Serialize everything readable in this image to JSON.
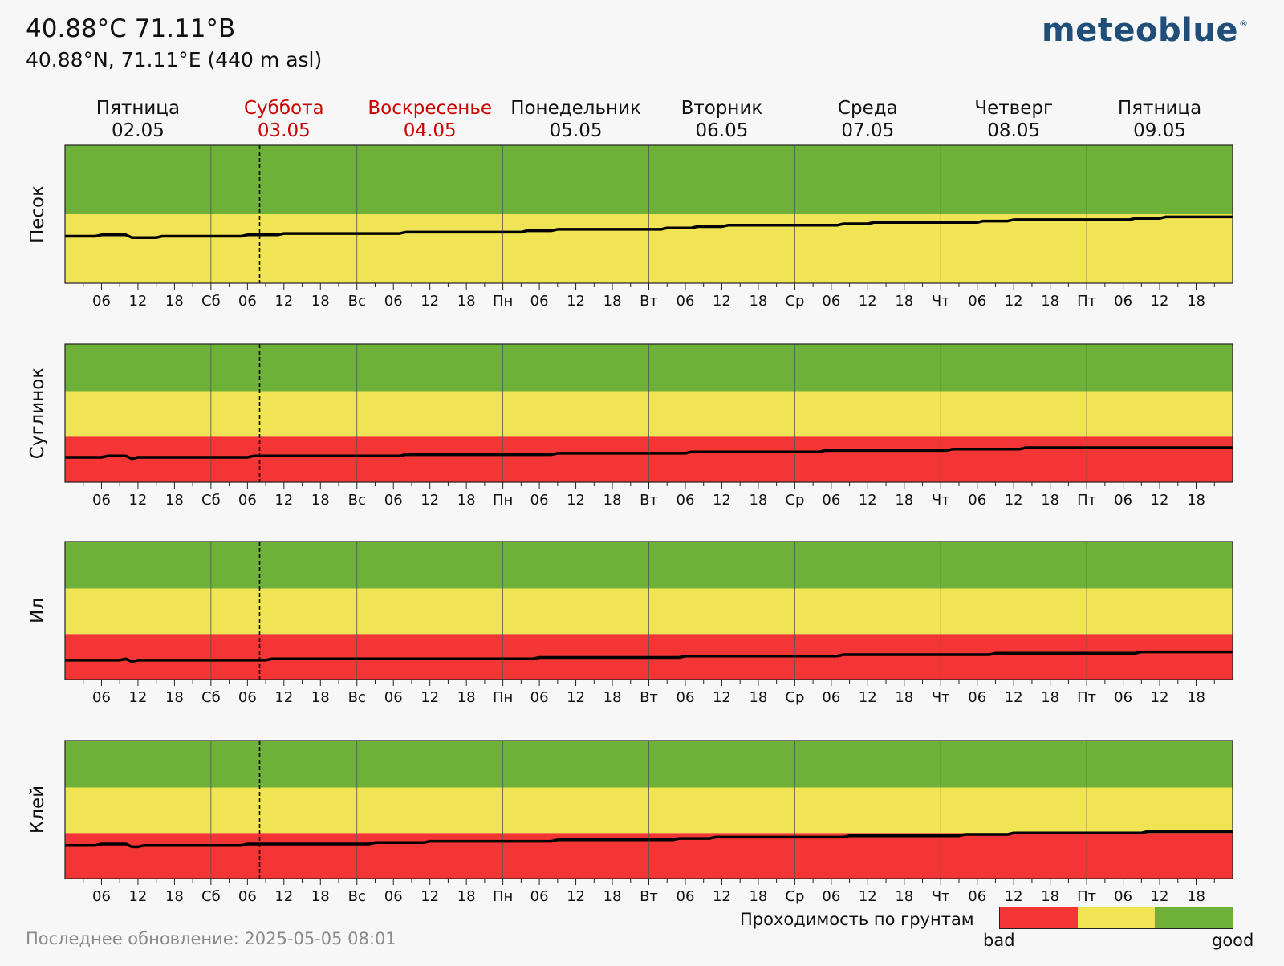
{
  "header": {
    "title": "40.88°C 71.11°B",
    "subtitle": "40.88°N, 71.11°E (440 m asl)",
    "logo": "meteoblue",
    "logo_mark": "®"
  },
  "days": [
    {
      "name": "Пятница",
      "date": "02.05",
      "weekend": false
    },
    {
      "name": "Суббота",
      "date": "03.05",
      "weekend": true
    },
    {
      "name": "Воскресенье",
      "date": "04.05",
      "weekend": true
    },
    {
      "name": "Понедельник",
      "date": "05.05",
      "weekend": false
    },
    {
      "name": "Вторник",
      "date": "06.05",
      "weekend": false
    },
    {
      "name": "Среда",
      "date": "07.05",
      "weekend": false
    },
    {
      "name": "Четверг",
      "date": "08.05",
      "weekend": false
    },
    {
      "name": "Пятница",
      "date": "09.05",
      "weekend": false
    }
  ],
  "colors": {
    "bad": "#f43535",
    "medium": "#f0e455",
    "good": "#6db139",
    "weekend_text": "#cc0000",
    "line": "#000000"
  },
  "chart_data": {
    "type": "line",
    "x_ticks": [
      "06",
      "12",
      "18",
      "Сб",
      "06",
      "12",
      "18",
      "Вс",
      "06",
      "12",
      "18",
      "Пн",
      "06",
      "12",
      "18",
      "Вт",
      "06",
      "12",
      "18",
      "Ср",
      "06",
      "12",
      "18",
      "Чт",
      "06",
      "12",
      "18",
      "Пт",
      "06",
      "12",
      "18"
    ],
    "now_hour": 32,
    "hours_total": 192,
    "panels": [
      {
        "ylabel": "Песок",
        "bands": [
          [
            0.0,
            0.5,
            "medium"
          ],
          [
            0.5,
            1.0,
            "good"
          ]
        ],
        "series": {
          "name": "Песок",
          "points": [
            [
              0,
              0.34
            ],
            [
              5,
              0.34
            ],
            [
              6,
              0.35
            ],
            [
              10,
              0.35
            ],
            [
              11,
              0.33
            ],
            [
              15,
              0.33
            ],
            [
              16,
              0.34
            ],
            [
              29,
              0.34
            ],
            [
              30,
              0.35
            ],
            [
              35,
              0.35
            ],
            [
              36,
              0.36
            ],
            [
              55,
              0.36
            ],
            [
              56,
              0.37
            ],
            [
              75,
              0.37
            ],
            [
              76,
              0.38
            ],
            [
              80,
              0.38
            ],
            [
              81,
              0.39
            ],
            [
              98,
              0.39
            ],
            [
              99,
              0.4
            ],
            [
              103,
              0.4
            ],
            [
              104,
              0.41
            ],
            [
              108,
              0.41
            ],
            [
              109,
              0.42
            ],
            [
              127,
              0.42
            ],
            [
              128,
              0.43
            ],
            [
              132,
              0.43
            ],
            [
              133,
              0.44
            ],
            [
              150,
              0.44
            ],
            [
              151,
              0.45
            ],
            [
              155,
              0.45
            ],
            [
              156,
              0.46
            ],
            [
              175,
              0.46
            ],
            [
              176,
              0.47
            ],
            [
              180,
              0.47
            ],
            [
              181,
              0.48
            ],
            [
              192,
              0.48
            ]
          ]
        }
      },
      {
        "ylabel": "Суглинок",
        "bands": [
          [
            0.0,
            0.33,
            "bad"
          ],
          [
            0.33,
            0.66,
            "medium"
          ],
          [
            0.66,
            1.0,
            "good"
          ]
        ],
        "series": {
          "name": "Суглинок",
          "points": [
            [
              0,
              0.18
            ],
            [
              6,
              0.18
            ],
            [
              7,
              0.19
            ],
            [
              10,
              0.19
            ],
            [
              11,
              0.17
            ],
            [
              12,
              0.18
            ],
            [
              30,
              0.18
            ],
            [
              31,
              0.19
            ],
            [
              55,
              0.19
            ],
            [
              56,
              0.2
            ],
            [
              80,
              0.2
            ],
            [
              81,
              0.21
            ],
            [
              102,
              0.21
            ],
            [
              103,
              0.22
            ],
            [
              124,
              0.22
            ],
            [
              125,
              0.23
            ],
            [
              145,
              0.23
            ],
            [
              146,
              0.24
            ],
            [
              157,
              0.24
            ],
            [
              158,
              0.25
            ],
            [
              192,
              0.25
            ]
          ]
        }
      },
      {
        "ylabel": "Ил",
        "bands": [
          [
            0.0,
            0.33,
            "bad"
          ],
          [
            0.33,
            0.66,
            "medium"
          ],
          [
            0.66,
            1.0,
            "good"
          ]
        ],
        "series": {
          "name": "Ил",
          "points": [
            [
              0,
              0.14
            ],
            [
              9,
              0.14
            ],
            [
              10,
              0.15
            ],
            [
              11,
              0.13
            ],
            [
              12,
              0.14
            ],
            [
              33,
              0.14
            ],
            [
              34,
              0.15
            ],
            [
              77,
              0.15
            ],
            [
              78,
              0.16
            ],
            [
              101,
              0.16
            ],
            [
              102,
              0.17
            ],
            [
              127,
              0.17
            ],
            [
              128,
              0.18
            ],
            [
              152,
              0.18
            ],
            [
              153,
              0.19
            ],
            [
              176,
              0.19
            ],
            [
              177,
              0.2
            ],
            [
              192,
              0.2
            ]
          ]
        }
      },
      {
        "ylabel": "Клей",
        "bands": [
          [
            0.0,
            0.33,
            "bad"
          ],
          [
            0.33,
            0.66,
            "medium"
          ],
          [
            0.66,
            1.0,
            "good"
          ]
        ],
        "series": {
          "name": "Клей",
          "points": [
            [
              0,
              0.24
            ],
            [
              5,
              0.24
            ],
            [
              6,
              0.25
            ],
            [
              10,
              0.25
            ],
            [
              11,
              0.23
            ],
            [
              12,
              0.23
            ],
            [
              13,
              0.24
            ],
            [
              29,
              0.24
            ],
            [
              30,
              0.25
            ],
            [
              50,
              0.25
            ],
            [
              51,
              0.26
            ],
            [
              59,
              0.26
            ],
            [
              60,
              0.27
            ],
            [
              80,
              0.27
            ],
            [
              81,
              0.28
            ],
            [
              100,
              0.28
            ],
            [
              101,
              0.29
            ],
            [
              106,
              0.29
            ],
            [
              107,
              0.3
            ],
            [
              128,
              0.3
            ],
            [
              129,
              0.31
            ],
            [
              147,
              0.31
            ],
            [
              148,
              0.32
            ],
            [
              155,
              0.32
            ],
            [
              156,
              0.33
            ],
            [
              177,
              0.33
            ],
            [
              178,
              0.34
            ],
            [
              192,
              0.34
            ]
          ]
        }
      }
    ]
  },
  "legend": {
    "title": "Проходимость по грунтам",
    "bad": "bad",
    "good": "good"
  },
  "footer": {
    "last_update": "Последнее обновление: 2025-05-05 08:01"
  }
}
